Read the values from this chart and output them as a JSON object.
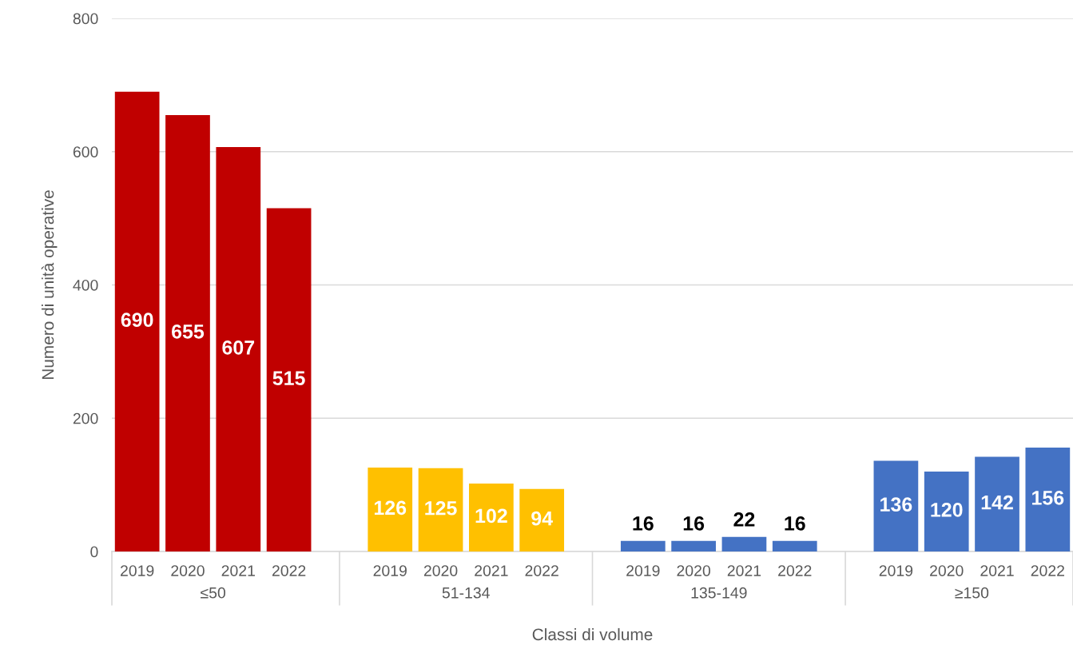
{
  "chart_data": {
    "type": "bar",
    "categories": [
      "2019",
      "2020",
      "2021",
      "2022",
      null,
      "2019",
      "2020",
      "2021",
      "2022",
      null,
      "2019",
      "2020",
      "2021",
      "2022",
      null,
      "2019",
      "2020",
      "2021",
      "2022"
    ],
    "values": [
      690,
      655,
      607,
      515,
      null,
      126,
      125,
      102,
      94,
      null,
      16,
      16,
      22,
      16,
      null,
      136,
      120,
      142,
      156
    ],
    "colors": [
      "#c00000",
      "#c00000",
      "#c00000",
      "#c00000",
      null,
      "#ffc000",
      "#ffc000",
      "#ffc000",
      "#ffc000",
      null,
      "#4472c4",
      "#4472c4",
      "#4472c4",
      "#4472c4",
      null,
      "#4472c4",
      "#4472c4",
      "#4472c4",
      "#4472c4"
    ],
    "annotations": [
      "≤50",
      "51-134",
      "135-149",
      "≥150"
    ],
    "xlabel": "Classi di volume",
    "ylabel": "Numero di unità operative",
    "ylim": [
      0,
      800
    ],
    "yticks": [
      0,
      200,
      400,
      600,
      800
    ],
    "grid": "y",
    "data_labels": true
  }
}
